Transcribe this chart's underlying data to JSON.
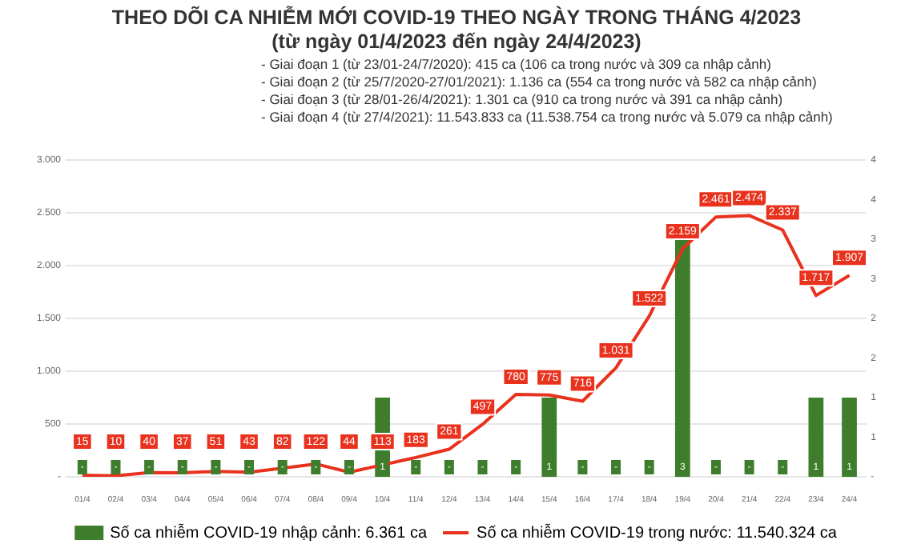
{
  "chart_data": {
    "type": "bar",
    "title": "THEO DÕI CA NHIỄM MỚI COVID-19 THEO NGÀY TRONG THÁNG 4/2023",
    "subtitle": "(từ ngày 01/4/2023 đến ngày 24/4/2023)",
    "annotations": [
      "- Giai đoạn 1 (từ 23/01-24/7/2020): 415 ca (106 ca trong nước và 309 ca nhập cảnh)",
      "- Giai đoạn 2 (từ 25/7/2020-27/01/2021): 1.136 ca (554 ca trong nước và 582 ca nhập cảnh)",
      "- Giai đoạn 3 (từ 28/01-26/4/2021): 1.301 ca (910 ca trong nước và 391 ca nhập cảnh)",
      "- Giai đoạn 4 (từ 27/4/2021): 11.543.833 ca (11.538.754 ca trong nước và 5.079 ca nhập cảnh)"
    ],
    "categories": [
      "01/4",
      "02/4",
      "03/4",
      "04/4",
      "05/4",
      "06/4",
      "07/4",
      "08/4",
      "09/4",
      "10/4",
      "11/4",
      "12/4",
      "13/4",
      "14/4",
      "15/4",
      "16/4",
      "17/4",
      "18/4",
      "19/4",
      "20/4",
      "21/4",
      "22/4",
      "23/4",
      "24/4"
    ],
    "series": [
      {
        "name": "Số ca nhiễm COVID-19 nhập cảnh: 6.361 ca",
        "axis": "y2",
        "color": "#3e7d2c",
        "values": [
          0,
          0,
          0,
          0,
          0,
          0,
          0,
          0,
          0,
          1,
          0,
          0,
          0,
          0,
          1,
          0,
          0,
          0,
          3,
          0,
          0,
          0,
          1,
          1
        ],
        "value_labels": [
          "-",
          "-",
          "-",
          "-",
          "-",
          "-",
          "-",
          "-",
          "-",
          "1",
          "-",
          "-",
          "-",
          "-",
          "1",
          "-",
          "-",
          "-",
          "3",
          "-",
          "-",
          "-",
          "1",
          "1"
        ]
      },
      {
        "name": "Số ca nhiễm COVID-19 trong nước: 11.540.324 ca",
        "type": "line",
        "color": "#e8321e",
        "values": [
          15,
          10,
          40,
          37,
          51,
          43,
          82,
          122,
          44,
          113,
          183,
          261,
          497,
          780,
          775,
          716,
          1031,
          1522,
          2159,
          2461,
          2474,
          2337,
          1717,
          1907
        ],
        "value_labels": [
          "15",
          "10",
          "40",
          "37",
          "51",
          "43",
          "82",
          "122",
          "44",
          "113",
          "183",
          "261",
          "497",
          "780",
          "775",
          "716",
          "1.031",
          "1.522",
          "2.159",
          "2.461",
          "2.474",
          "2.337",
          "1.717",
          "1.907"
        ]
      }
    ],
    "ylim": [
      0,
      3000
    ],
    "yticks": [
      {
        "value": 0,
        "label": "-"
      },
      500,
      {
        "value": 1000,
        "label": "1.000"
      },
      {
        "value": 1500,
        "label": "1.500"
      },
      {
        "value": 2000,
        "label": "2.000"
      },
      {
        "value": 2500,
        "label": "2.500"
      },
      {
        "value": 3000,
        "label": "3.000"
      }
    ],
    "y2lim": [
      0,
      4
    ],
    "y2ticks": [
      {
        "value": 0,
        "label": "-"
      },
      {
        "value": 0.5,
        "label": "1"
      },
      1,
      {
        "value": 1.5,
        "label": "2"
      },
      2,
      {
        "value": 2.5,
        "label": "3"
      },
      3,
      {
        "value": 3.5,
        "label": "4"
      },
      4
    ],
    "grid": "y",
    "legend": "bottom",
    "marker": "none",
    "line_style": "solid"
  }
}
